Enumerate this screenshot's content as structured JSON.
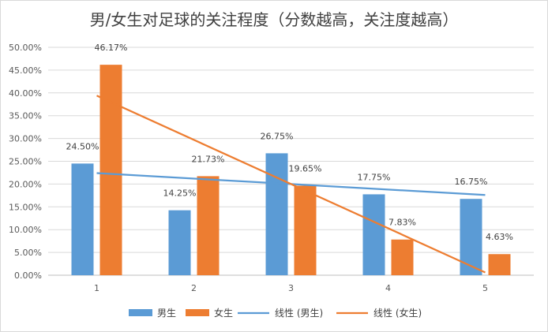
{
  "chart_data": {
    "type": "bar",
    "title": "男/女生对足球的关注程度（分数越高，关注度越高）",
    "categories": [
      "1",
      "2",
      "3",
      "4",
      "5"
    ],
    "series": [
      {
        "name": "男生",
        "values": [
          24.5,
          14.25,
          26.75,
          17.75,
          16.75
        ],
        "labels": [
          "24.50%",
          "14.25%",
          "26.75%",
          "17.75%",
          "16.75%"
        ],
        "color": "#5b9bd5"
      },
      {
        "name": "女生",
        "values": [
          46.17,
          21.73,
          19.65,
          7.83,
          4.63
        ],
        "labels": [
          "46.17%",
          "21.73%",
          "19.65%",
          "7.83%",
          "4.63%"
        ],
        "color": "#ed7d31"
      }
    ],
    "trendlines": [
      {
        "name": "线性 (男生)",
        "of": "男生",
        "type": "linear",
        "color": "#5b9bd5"
      },
      {
        "name": "线性 (女生)",
        "of": "女生",
        "type": "linear",
        "color": "#ed7d31"
      }
    ],
    "ylim": [
      0,
      50
    ],
    "ytick_step": 5,
    "ytick_labels": [
      "0.00%",
      "5.00%",
      "10.00%",
      "15.00%",
      "20.00%",
      "25.00%",
      "30.00%",
      "35.00%",
      "40.00%",
      "45.00%",
      "50.00%"
    ],
    "grid": true,
    "legend_position": "bottom",
    "xlabel": "",
    "ylabel": ""
  }
}
